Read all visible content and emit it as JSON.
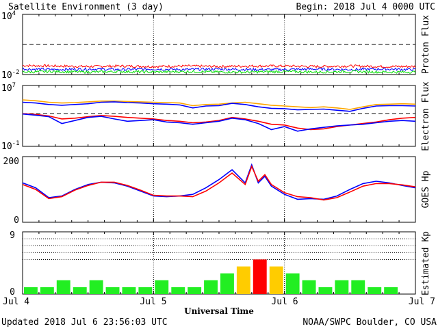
{
  "header": {
    "title": "Satellite Environment (3 day)",
    "begin": "Begin:  2018 Jul 4 0000 UTC"
  },
  "footer": {
    "updated": "Updated 2018 Jul  6 23:56:03 UTC",
    "credit": "NOAA/SWPC Boulder, CO USA",
    "xlabel": "Universal Time"
  },
  "x_ticks": [
    "Jul 4",
    "Jul 5",
    "Jul 6",
    "Jul 7"
  ],
  "colors": {
    "red": "#ff0000",
    "blue": "#0000ff",
    "green": "#00dd00",
    "orange": "#ffa500",
    "kp_green": "#22ee22",
    "kp_yellow": "#ffcc00",
    "kp_red": "#ff0000"
  },
  "chart_data": [
    {
      "type": "line",
      "ylabel": "Proton Flux",
      "yscale": "log",
      "ylim_exp": [
        -2,
        4
      ],
      "ytick_labels": [
        {
          "base": "10",
          "exp": "4"
        },
        {
          "base": "10",
          "exp": "-2"
        }
      ],
      "threshold_exp": 1,
      "x": [
        0,
        0.25,
        0.5,
        0.75,
        1,
        1.25,
        1.5,
        1.75,
        2,
        2.25,
        2.5,
        2.75,
        3
      ],
      "series": [
        {
          "color": "red",
          "y_exp": [
            -1.1,
            -1.15,
            -1.2,
            -1.15,
            -1.2,
            -1.15,
            -1.2,
            -1.15,
            -1.15,
            -1.2,
            -1.15,
            -1.2,
            -1.2
          ]
        },
        {
          "color": "blue",
          "y_exp": [
            -1.45,
            -1.5,
            -1.45,
            -1.5,
            -1.45,
            -1.5,
            -1.45,
            -1.5,
            -1.5,
            -1.45,
            -1.5,
            -1.45,
            -1.5
          ]
        },
        {
          "color": "green",
          "y_exp": [
            -1.75,
            -1.7,
            -1.75,
            -1.7,
            -1.75,
            -1.7,
            -1.75,
            -1.75,
            -1.7,
            -1.75,
            -1.7,
            -1.75,
            -1.75
          ]
        }
      ]
    },
    {
      "type": "line",
      "ylabel": "Electron Flux",
      "yscale": "log",
      "ylim_exp": [
        -1,
        7
      ],
      "ytick_labels": [
        {
          "base": "10",
          "exp": "7"
        },
        {
          "base": "10",
          "exp": "-1"
        }
      ],
      "threshold_exp": 3.3,
      "x": [
        0,
        0.1,
        0.2,
        0.3,
        0.4,
        0.5,
        0.6,
        0.7,
        0.8,
        0.9,
        1.0,
        1.1,
        1.2,
        1.3,
        1.4,
        1.5,
        1.6,
        1.7,
        1.8,
        1.9,
        2.0,
        2.1,
        2.2,
        2.3,
        2.4,
        2.5,
        2.6,
        2.7,
        2.8,
        2.9,
        3.0
      ],
      "series": [
        {
          "color": "orange",
          "y_exp": [
            5.1,
            5.0,
            4.8,
            4.7,
            4.75,
            4.85,
            4.95,
            4.95,
            4.9,
            4.85,
            4.8,
            4.75,
            4.7,
            4.35,
            4.5,
            4.55,
            4.7,
            4.8,
            4.6,
            4.4,
            4.3,
            4.2,
            4.1,
            4.2,
            4.05,
            3.85,
            4.2,
            4.5,
            4.55,
            4.6,
            4.55
          ]
        },
        {
          "color": "blue",
          "y_exp": [
            4.8,
            4.7,
            4.5,
            4.4,
            4.5,
            4.6,
            4.8,
            4.85,
            4.75,
            4.7,
            4.6,
            4.55,
            4.45,
            4.05,
            4.3,
            4.35,
            4.65,
            4.5,
            4.2,
            4.0,
            3.95,
            3.8,
            3.85,
            3.9,
            3.75,
            3.6,
            4.0,
            4.3,
            4.35,
            4.35,
            4.3
          ]
        },
        {
          "color": "red",
          "y_exp": [
            3.3,
            3.2,
            3.0,
            2.6,
            2.7,
            2.9,
            3.05,
            2.95,
            2.8,
            2.7,
            2.6,
            2.4,
            2.3,
            2.1,
            2.2,
            2.4,
            2.8,
            2.6,
            2.3,
            1.9,
            1.8,
            1.4,
            1.2,
            1.3,
            1.6,
            1.8,
            2.0,
            2.2,
            2.5,
            2.7,
            2.8
          ]
        },
        {
          "color": "blue",
          "y_exp": [
            3.25,
            3.1,
            2.9,
            2.0,
            2.4,
            2.8,
            2.95,
            2.6,
            2.3,
            2.4,
            2.5,
            2.2,
            2.1,
            1.9,
            2.1,
            2.3,
            2.7,
            2.5,
            2.0,
            1.2,
            1.6,
            1.0,
            1.3,
            1.5,
            1.7,
            1.8,
            1.9,
            2.1,
            2.3,
            2.4,
            2.3
          ]
        }
      ]
    },
    {
      "type": "line",
      "ylabel": "GOES Hp",
      "ylim": [
        0,
        200
      ],
      "yticks": [
        0,
        200
      ],
      "x": [
        0,
        0.1,
        0.2,
        0.3,
        0.4,
        0.5,
        0.6,
        0.7,
        0.8,
        0.9,
        1.0,
        1.1,
        1.2,
        1.3,
        1.4,
        1.5,
        1.6,
        1.7,
        1.75,
        1.8,
        1.85,
        1.9,
        2.0,
        2.1,
        2.2,
        2.3,
        2.4,
        2.5,
        2.6,
        2.7,
        2.8,
        2.9,
        3.0
      ],
      "series": [
        {
          "color": "blue",
          "y": [
            120,
            105,
            75,
            80,
            100,
            115,
            122,
            120,
            110,
            95,
            80,
            78,
            80,
            85,
            105,
            130,
            160,
            120,
            175,
            120,
            140,
            110,
            85,
            70,
            72,
            70,
            80,
            100,
            118,
            125,
            120,
            112,
            105
          ]
        },
        {
          "color": "red",
          "y": [
            115,
            100,
            72,
            78,
            98,
            112,
            122,
            122,
            112,
            98,
            82,
            80,
            80,
            78,
            95,
            120,
            150,
            115,
            170,
            125,
            145,
            115,
            90,
            78,
            75,
            68,
            75,
            92,
            110,
            118,
            118,
            114,
            108
          ]
        }
      ]
    },
    {
      "type": "bar",
      "ylabel": "Estimated Kp",
      "ylim": [
        0,
        9
      ],
      "yticks": [
        0,
        9
      ],
      "dotted_levels": [
        5,
        6,
        7,
        8,
        9
      ],
      "values": [
        1,
        1,
        2,
        1,
        2,
        1,
        1,
        1,
        2,
        1,
        1,
        2,
        3,
        4,
        5,
        4,
        3,
        2,
        1,
        2,
        2,
        1,
        1,
        0
      ],
      "colors": [
        "kp_green",
        "kp_green",
        "kp_green",
        "kp_green",
        "kp_green",
        "kp_green",
        "kp_green",
        "kp_green",
        "kp_green",
        "kp_green",
        "kp_green",
        "kp_green",
        "kp_green",
        "kp_yellow",
        "kp_red",
        "kp_yellow",
        "kp_green",
        "kp_green",
        "kp_green",
        "kp_green",
        "kp_green",
        "kp_green",
        "kp_green",
        "kp_green"
      ]
    }
  ]
}
